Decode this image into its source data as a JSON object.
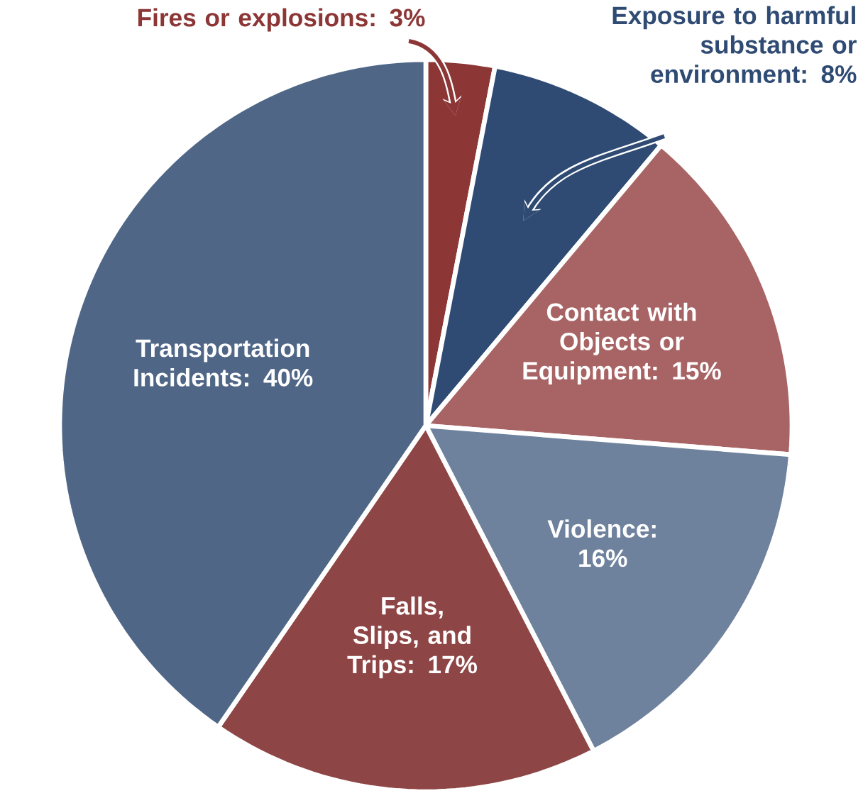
{
  "chart_data": {
    "type": "pie",
    "categories": [
      "Fires or explosions",
      "Exposure to harmful substance or environment",
      "Contact with Objects or Equipment",
      "Violence",
      "Falls, Slips, and Trips",
      "Transportation Incidents"
    ],
    "values": [
      3,
      8,
      15,
      16,
      17,
      40
    ],
    "value_labels": [
      ": 3%",
      ": 8%",
      ": 15%",
      ": 16%",
      ": 17%",
      ": 40%"
    ],
    "colors": [
      "#8c3636",
      "#2f4b73",
      "#a86464",
      "#6f829d",
      "#8e4545",
      "#4f6686"
    ]
  }
}
